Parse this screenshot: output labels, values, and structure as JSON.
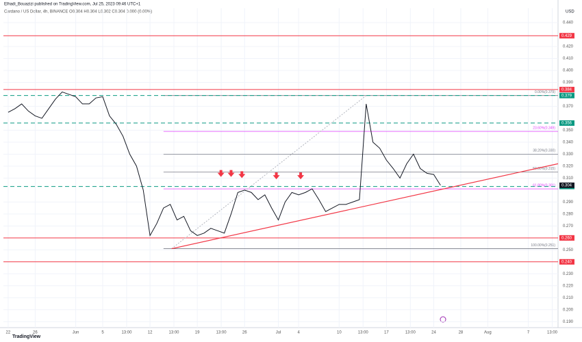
{
  "chart_data": {
    "type": "line",
    "title": "Elhadi_Bouazizi published on TradingView.com, Jul 25, 2023 09:46 UTC+1",
    "subtitle": "Cardano / US Dollar, 4h, BINANCE O0.304 H0.304 L0.302 C0.304 0.000 (0.00%)",
    "ylabel": "USD",
    "watermark": "TradingView",
    "grid": true,
    "xlim": [
      -0.7,
      81.4
    ],
    "ylim": [
      0.185,
      0.452
    ],
    "xticks": [
      {
        "value": 0,
        "label": "22"
      },
      {
        "value": 4,
        "label": "26"
      },
      {
        "value": 10,
        "label": "Jun"
      },
      {
        "value": 14,
        "label": "5"
      },
      {
        "value": 17.54,
        "label": "13:00"
      },
      {
        "value": 21,
        "label": "12"
      },
      {
        "value": 24.54,
        "label": "13:00"
      },
      {
        "value": 28,
        "label": "19"
      },
      {
        "value": 31.54,
        "label": "13:00"
      },
      {
        "value": 35,
        "label": "26"
      },
      {
        "value": 40,
        "label": "Jul"
      },
      {
        "value": 43,
        "label": "4"
      },
      {
        "value": 49,
        "label": "10"
      },
      {
        "value": 52.54,
        "label": "13:00"
      },
      {
        "value": 56,
        "label": "17"
      },
      {
        "value": 59.54,
        "label": "13:00"
      },
      {
        "value": 63,
        "label": "24"
      },
      {
        "value": 67,
        "label": "28"
      },
      {
        "value": 71,
        "label": "Aug"
      },
      {
        "value": 77,
        "label": "7"
      },
      {
        "value": 80.54,
        "label": "13:00"
      }
    ],
    "yticks": [
      {
        "value": 0.19,
        "label": "0.190"
      },
      {
        "value": 0.2,
        "label": "0.200"
      },
      {
        "value": 0.21,
        "label": "0.210"
      },
      {
        "value": 0.22,
        "label": "0.220"
      },
      {
        "value": 0.23,
        "label": "0.230"
      },
      {
        "value": 0.25,
        "label": "0.250"
      },
      {
        "value": 0.27,
        "label": "0.270"
      },
      {
        "value": 0.28,
        "label": "0.280"
      },
      {
        "value": 0.29,
        "label": "0.290"
      },
      {
        "value": 0.31,
        "label": "0.310"
      },
      {
        "value": 0.32,
        "label": "0.320"
      },
      {
        "value": 0.33,
        "label": "0.330"
      },
      {
        "value": 0.34,
        "label": "0.340"
      },
      {
        "value": 0.35,
        "label": "0.350"
      },
      {
        "value": 0.37,
        "label": "0.370"
      },
      {
        "value": 0.39,
        "label": "0.390"
      },
      {
        "value": 0.4,
        "label": "0.400"
      },
      {
        "value": 0.41,
        "label": "0.410"
      },
      {
        "value": 0.42,
        "label": "0.420"
      },
      {
        "value": 0.44,
        "label": "0.440"
      }
    ],
    "series": [
      {
        "name": "ADAUSD",
        "color": "#131722",
        "x": [
          0,
          1,
          2,
          3,
          4,
          5,
          6,
          7,
          8,
          9,
          10,
          11,
          12,
          13,
          14,
          15,
          16,
          17,
          18,
          19,
          20,
          21,
          22,
          23,
          24,
          25,
          26,
          27,
          28,
          29,
          30,
          31,
          32,
          33,
          34,
          35,
          36,
          37,
          38,
          39,
          40,
          41,
          42,
          43,
          44,
          45,
          46,
          47,
          48,
          49,
          50,
          51,
          52,
          53,
          54,
          55,
          56,
          57,
          58,
          59,
          60,
          61,
          62,
          63,
          64
        ],
        "values": [
          0.365,
          0.368,
          0.372,
          0.366,
          0.362,
          0.36,
          0.368,
          0.376,
          0.382,
          0.38,
          0.378,
          0.372,
          0.372,
          0.377,
          0.378,
          0.362,
          0.355,
          0.345,
          0.33,
          0.32,
          0.3,
          0.262,
          0.272,
          0.285,
          0.288,
          0.275,
          0.278,
          0.266,
          0.262,
          0.264,
          0.268,
          0.266,
          0.264,
          0.28,
          0.298,
          0.3,
          0.298,
          0.292,
          0.296,
          0.285,
          0.275,
          0.29,
          0.298,
          0.296,
          0.298,
          0.301,
          0.292,
          0.282,
          0.285,
          0.288,
          0.288,
          0.29,
          0.292,
          0.372,
          0.34,
          0.335,
          0.325,
          0.318,
          0.31,
          0.322,
          0.33,
          0.318,
          0.314,
          0.313,
          0.304
        ]
      }
    ],
    "price_label": {
      "value": 0.304,
      "label": "0.304",
      "color": "#131722"
    },
    "levels": [
      {
        "value": 0.429,
        "label": "0.429",
        "color": "#f23645",
        "style": "solid"
      },
      {
        "value": 0.384,
        "label": "0.384",
        "color": "#f23645",
        "style": "solid"
      },
      {
        "value": 0.379,
        "label": "0.379",
        "color": "#089981",
        "style": "dashed"
      },
      {
        "value": 0.356,
        "label": "0.356",
        "color": "#089981",
        "style": "dashed"
      },
      {
        "value": 0.303,
        "label": "0.303",
        "color": "#089981",
        "style": "dashed"
      },
      {
        "value": 0.26,
        "label": "0.260",
        "color": "#f23645",
        "style": "solid"
      },
      {
        "value": 0.24,
        "label": "0.240",
        "color": "#f23645",
        "style": "solid"
      }
    ],
    "fib": {
      "start": 23,
      "levels": [
        {
          "value": 0.379,
          "label": "0.00%(0.379)",
          "color": "#787b86"
        },
        {
          "value": 0.349,
          "label": "23.60%(0.349)",
          "color": "#e040fb"
        },
        {
          "value": 0.33,
          "label": "38.20%(0.330)",
          "color": "#787b86"
        },
        {
          "value": 0.315,
          "label": "50.00%(0.315)",
          "color": "#787b86"
        },
        {
          "value": 0.301,
          "label": "61.80%(0.301)",
          "color": "#e040fb"
        },
        {
          "value": 0.251,
          "label": "100.00%(0.251)",
          "color": "#787b86"
        }
      ]
    },
    "trendline": {
      "x": [
        24.2,
        81.4
      ],
      "y": [
        0.251,
        0.322
      ],
      "color": "#f23645"
    },
    "dotted_line": {
      "x": [
        24.2,
        53
      ],
      "y": [
        0.251,
        0.379
      ],
      "color": "#b2b5be"
    },
    "arrows": {
      "x": [
        31.5,
        33,
        34.6,
        39.7,
        43.3
      ],
      "y": [
        0.311,
        0.311,
        0.31,
        0.309,
        0.309
      ],
      "color": "#f23645"
    }
  }
}
